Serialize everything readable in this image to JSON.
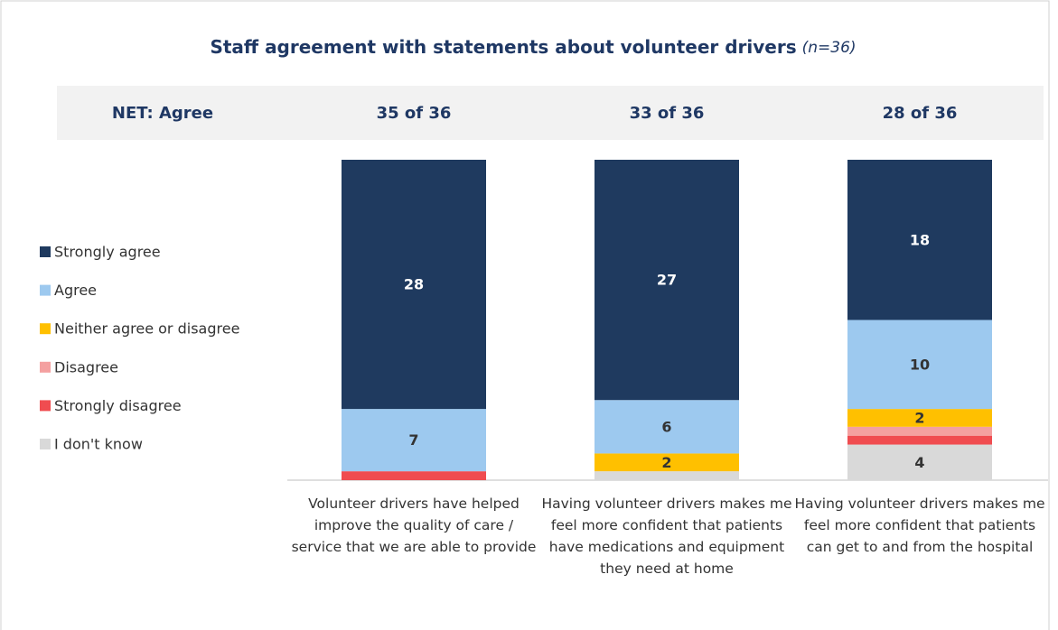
{
  "chart_data": {
    "type": "stacked_bar",
    "title": "Staff agreement with statements about volunteer drivers",
    "title_note": "(n=36)",
    "net_label": "NET: Agree",
    "net_values": [
      "35 of 36",
      "33 of 36",
      "28 of 36"
    ],
    "categories": [
      "Volunteer drivers have helped improve the quality of care / service that we are able to provide",
      "Having volunteer drivers makes me feel more confident that patients have medications and equipment they need at home",
      "Having volunteer drivers makes me feel more confident that patients can get to and from the hospital"
    ],
    "ylim": [
      0,
      36
    ],
    "series": [
      {
        "name": "I don't know",
        "color": "#d9d9d9",
        "label_color": "#333333",
        "values": [
          0,
          1,
          4
        ],
        "value_labels": [
          null,
          null,
          "4"
        ]
      },
      {
        "name": "Strongly disagree",
        "color": "#f04c50",
        "label_color": "#333333",
        "values": [
          1,
          0,
          1
        ],
        "value_labels": [
          null,
          null,
          null
        ]
      },
      {
        "name": "Disagree",
        "color": "#f4a0a0",
        "label_color": "#333333",
        "values": [
          0,
          0,
          1
        ],
        "value_labels": [
          null,
          null,
          null
        ]
      },
      {
        "name": "Neither agree or disagree",
        "color": "#ffc000",
        "label_color": "#333333",
        "values": [
          0,
          2,
          2
        ],
        "value_labels": [
          null,
          "2",
          "2"
        ]
      },
      {
        "name": "Agree",
        "color": "#9dc9ef",
        "label_color": "#333333",
        "values": [
          7,
          6,
          10
        ],
        "value_labels": [
          "7",
          "6",
          "10"
        ]
      },
      {
        "name": "Strongly agree",
        "color": "#1f3a5f",
        "label_color": "#ffffff",
        "values": [
          28,
          27,
          18
        ],
        "value_labels": [
          "28",
          "27",
          "18"
        ]
      }
    ]
  }
}
